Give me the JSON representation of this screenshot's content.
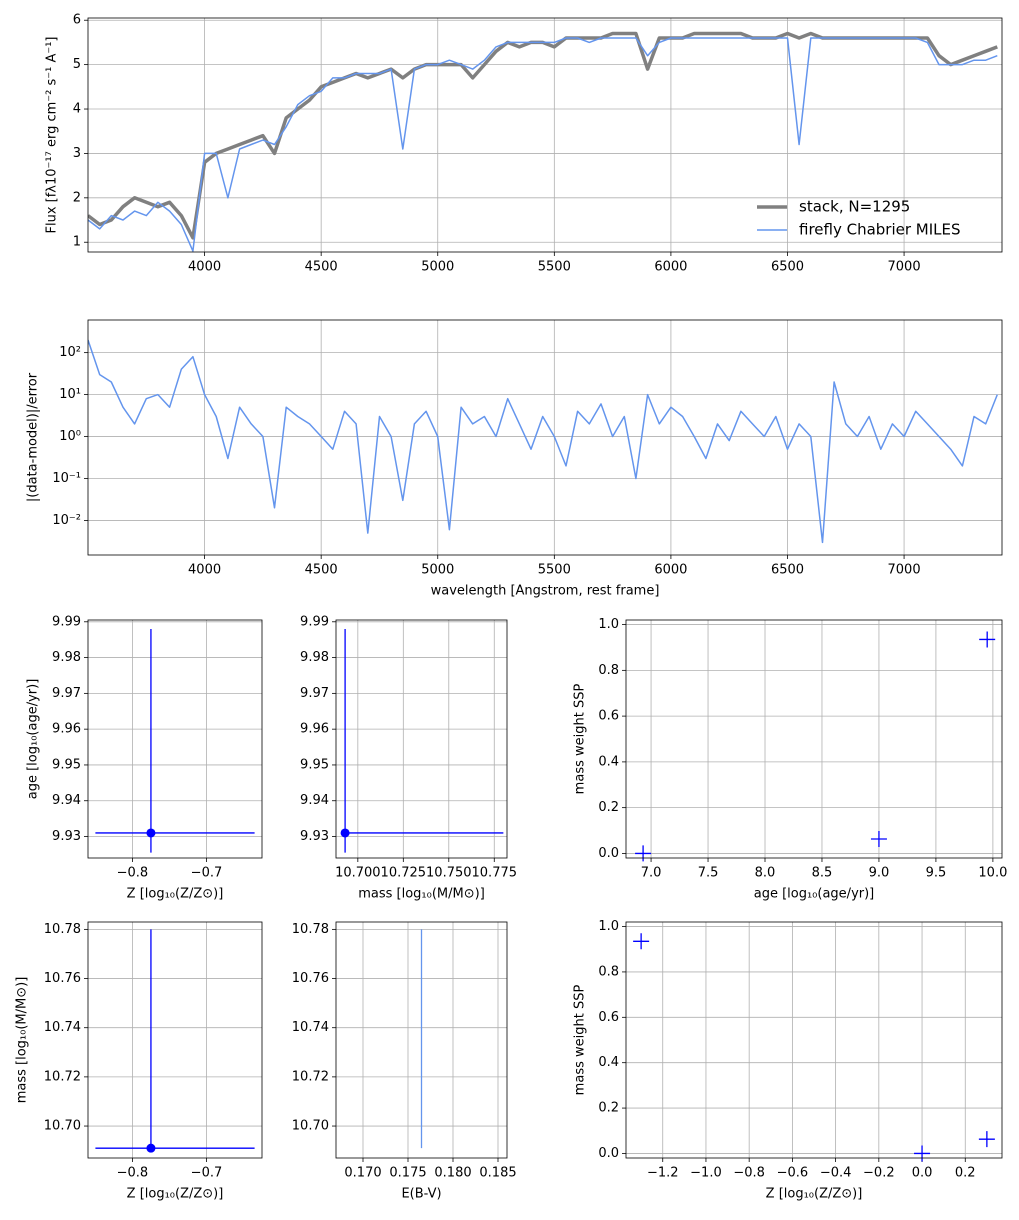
{
  "chart_data": [
    {
      "type": "line",
      "ylabel": "Flux [fλ10⁻¹⁷ erg cm⁻² s⁻¹ A⁻¹]",
      "x": [
        3500,
        3550,
        3600,
        3650,
        3700,
        3750,
        3800,
        3850,
        3900,
        3950,
        4000,
        4050,
        4100,
        4150,
        4200,
        4250,
        4300,
        4350,
        4400,
        4450,
        4500,
        4550,
        4600,
        4650,
        4700,
        4750,
        4800,
        4850,
        4900,
        4950,
        5000,
        5050,
        5100,
        5150,
        5200,
        5250,
        5300,
        5350,
        5400,
        5450,
        5500,
        5550,
        5600,
        5650,
        5700,
        5750,
        5800,
        5850,
        5900,
        5950,
        6000,
        6050,
        6100,
        6150,
        6200,
        6250,
        6300,
        6350,
        6400,
        6450,
        6500,
        6550,
        6600,
        6650,
        6700,
        6750,
        6800,
        6850,
        6900,
        6950,
        7000,
        7050,
        7100,
        7150,
        7200,
        7250,
        7300,
        7350,
        7400
      ],
      "series": [
        {
          "name": "stack, N=1295",
          "color": "#808080",
          "width": 3.5,
          "values": [
            1.6,
            1.4,
            1.5,
            1.8,
            2.0,
            1.9,
            1.8,
            1.9,
            1.6,
            1.1,
            2.8,
            3.0,
            3.1,
            3.2,
            3.3,
            3.4,
            3.0,
            3.8,
            4.0,
            4.2,
            4.5,
            4.6,
            4.7,
            4.8,
            4.7,
            4.8,
            4.9,
            4.7,
            4.9,
            5.0,
            5.0,
            5.0,
            5.0,
            4.7,
            5.0,
            5.3,
            5.5,
            5.4,
            5.5,
            5.5,
            5.4,
            5.6,
            5.6,
            5.6,
            5.6,
            5.7,
            5.7,
            5.7,
            4.9,
            5.6,
            5.6,
            5.6,
            5.7,
            5.7,
            5.7,
            5.7,
            5.7,
            5.6,
            5.6,
            5.6,
            5.7,
            5.6,
            5.7,
            5.6,
            5.6,
            5.6,
            5.6,
            5.6,
            5.6,
            5.6,
            5.6,
            5.6,
            5.6,
            5.2,
            5.0,
            5.1,
            5.2,
            5.3,
            5.4
          ]
        },
        {
          "name": "firefly Chabrier MILES",
          "color": "#6495ed",
          "width": 1.5,
          "values": [
            1.5,
            1.3,
            1.6,
            1.5,
            1.7,
            1.6,
            1.9,
            1.7,
            1.4,
            0.8,
            3.0,
            3.0,
            2.0,
            3.1,
            3.2,
            3.3,
            3.2,
            3.6,
            4.1,
            4.3,
            4.4,
            4.7,
            4.7,
            4.8,
            4.8,
            4.8,
            4.9,
            3.1,
            4.9,
            5.0,
            5.0,
            5.1,
            5.0,
            4.9,
            5.1,
            5.4,
            5.5,
            5.5,
            5.5,
            5.5,
            5.5,
            5.6,
            5.6,
            5.5,
            5.6,
            5.6,
            5.6,
            5.6,
            5.2,
            5.5,
            5.6,
            5.6,
            5.6,
            5.6,
            5.6,
            5.6,
            5.6,
            5.6,
            5.6,
            5.6,
            5.6,
            3.2,
            5.6,
            5.6,
            5.6,
            5.6,
            5.6,
            5.6,
            5.6,
            5.6,
            5.6,
            5.6,
            5.5,
            5.0,
            5.0,
            5.0,
            5.1,
            5.1,
            5.2
          ]
        }
      ],
      "xlim": [
        3500,
        7420
      ],
      "ylim": [
        0.78,
        6.05
      ],
      "xticks": [
        4000,
        4500,
        5000,
        5500,
        6000,
        6500,
        7000
      ],
      "yticks": [
        1,
        2,
        3,
        4,
        5,
        6
      ],
      "grid": true,
      "legend": "lower right"
    },
    {
      "type": "line",
      "ylabel": "|(data-model)|/error",
      "xlabel": "wavelength [Angstrom, rest frame]",
      "log_y": true,
      "x": [
        3500,
        3550,
        3600,
        3650,
        3700,
        3750,
        3800,
        3850,
        3900,
        3950,
        4000,
        4050,
        4100,
        4150,
        4200,
        4250,
        4300,
        4350,
        4400,
        4450,
        4500,
        4550,
        4600,
        4650,
        4700,
        4750,
        4800,
        4850,
        4900,
        4950,
        5000,
        5050,
        5100,
        5150,
        5200,
        5250,
        5300,
        5350,
        5400,
        5450,
        5500,
        5550,
        5600,
        5650,
        5700,
        5750,
        5800,
        5850,
        5900,
        5950,
        6000,
        6050,
        6100,
        6150,
        6200,
        6250,
        6300,
        6350,
        6400,
        6450,
        6500,
        6550,
        6600,
        6650,
        6700,
        6750,
        6800,
        6850,
        6900,
        6950,
        7000,
        7050,
        7100,
        7150,
        7200,
        7250,
        7300,
        7350,
        7400
      ],
      "series": [
        {
          "color": "#6495ed",
          "width": 1.5,
          "values": [
            200,
            30,
            20,
            5,
            2,
            8,
            10,
            5,
            40,
            80,
            10,
            3,
            0.3,
            5,
            2,
            1,
            0.02,
            5,
            3,
            2,
            1,
            0.5,
            4,
            2,
            0.005,
            3,
            1,
            0.03,
            2,
            4,
            1,
            0.006,
            5,
            2,
            3,
            1,
            8,
            2,
            0.5,
            3,
            1,
            0.2,
            4,
            2,
            6,
            1,
            3,
            0.1,
            10,
            2,
            5,
            3,
            1,
            0.3,
            2,
            0.8,
            4,
            2,
            1,
            3,
            0.5,
            2,
            1,
            0.003,
            20,
            2,
            1,
            3,
            0.5,
            2,
            1,
            4,
            2,
            1,
            0.5,
            0.2,
            3,
            2,
            10
          ]
        }
      ],
      "xlim": [
        3500,
        7420
      ],
      "ylim": [
        0.0015,
        600
      ],
      "xticks": [
        4000,
        4500,
        5000,
        5500,
        6000,
        6500,
        7000
      ],
      "yticks": [
        {
          "value": 0.01,
          "label": "10⁻²"
        },
        {
          "value": 0.1,
          "label": "10⁻¹"
        },
        {
          "value": 1,
          "label": "10⁰"
        },
        {
          "value": 10,
          "label": "10¹"
        },
        {
          "value": 100,
          "label": "10²"
        }
      ],
      "grid": true
    },
    {
      "type": "errorbar",
      "xlabel": "Z [log₁₀(Z/Z⊙)]",
      "ylabel": "age  [log₁₀(age/yr)]",
      "x": [
        -0.775
      ],
      "values": [
        9.931
      ],
      "x_lower": [
        -0.85
      ],
      "x_upper": [
        -0.635
      ],
      "y_lower": [
        9.9255
      ],
      "y_upper": [
        9.988
      ],
      "color": "#0000ff",
      "marker": "o",
      "xlim": [
        -0.86,
        -0.625
      ],
      "ylim": [
        9.924,
        9.9905
      ],
      "xticks": [
        {
          "value": -0.8,
          "label": "−0.8"
        },
        {
          "value": -0.7,
          "label": "−0.7"
        }
      ],
      "yticks": [
        9.93,
        9.94,
        9.95,
        9.96,
        9.97,
        9.98,
        9.99
      ],
      "grid": true
    },
    {
      "type": "errorbar",
      "xlabel": "mass [log₁₀(M/M⊙)]",
      "x": [
        10.693
      ],
      "values": [
        9.931
      ],
      "x_lower": [
        10.693
      ],
      "x_upper": [
        10.78
      ],
      "y_lower": [
        9.9255
      ],
      "y_upper": [
        9.988
      ],
      "color": "#0000ff",
      "marker": "o",
      "xlim": [
        10.688,
        10.782
      ],
      "ylim": [
        9.924,
        9.9905
      ],
      "xticks": [
        {
          "value": 10.7,
          "label": "10.700"
        },
        {
          "value": 10.725,
          "label": "10.725"
        },
        {
          "value": 10.75,
          "label": "10.750"
        },
        {
          "value": 10.775,
          "label": "10.775"
        }
      ],
      "yticks": [
        9.93,
        9.94,
        9.95,
        9.96,
        9.97,
        9.98,
        9.99
      ],
      "grid": true
    },
    {
      "type": "scatter",
      "xlabel": "age  [log₁₀(age/yr)]",
      "ylabel": "mass weight SSP",
      "x": [
        6.93,
        9.0,
        9.95
      ],
      "values": [
        0.0,
        0.063,
        0.935
      ],
      "color": "#0000ff",
      "marker": "+",
      "xlim": [
        6.78,
        10.08
      ],
      "ylim": [
        -0.02,
        1.02
      ],
      "xticks": [
        {
          "value": 7,
          "label": "7.0"
        },
        7.5,
        {
          "value": 8,
          "label": "8.0"
        },
        8.5,
        {
          "value": 9,
          "label": "9.0"
        },
        9.5,
        {
          "value": 10,
          "label": "10.0"
        }
      ],
      "yticks": [
        {
          "value": 0,
          "label": "0.0"
        },
        0.2,
        0.4,
        0.6,
        0.8,
        {
          "value": 1,
          "label": "1.0"
        }
      ],
      "grid": true
    },
    {
      "type": "errorbar",
      "xlabel": "Z [log₁₀(Z/Z⊙)]",
      "ylabel": "mass [log₁₀(M/M⊙)]",
      "x": [
        -0.775
      ],
      "values": [
        10.691
      ],
      "x_lower": [
        -0.85
      ],
      "x_upper": [
        -0.635
      ],
      "y_lower": [
        10.691
      ],
      "y_upper": [
        10.78
      ],
      "color": "#0000ff",
      "marker": "o",
      "xlim": [
        -0.86,
        -0.625
      ],
      "ylim": [
        10.687,
        10.783
      ],
      "xticks": [
        {
          "value": -0.8,
          "label": "−0.8"
        },
        {
          "value": -0.7,
          "label": "−0.7"
        }
      ],
      "yticks": [
        {
          "value": 10.7,
          "label": "10.70"
        },
        10.72,
        10.74,
        10.76,
        10.78
      ],
      "grid": true
    },
    {
      "type": "errorbar",
      "xlabel": "E(B-V)",
      "x": [
        0.1765
      ],
      "y_lower": [
        10.691
      ],
      "y_upper": [
        10.78
      ],
      "color": "#6495ed",
      "xlim": [
        0.167,
        0.186
      ],
      "ylim": [
        10.687,
        10.783
      ],
      "xticks": [
        {
          "value": 0.17,
          "label": "0.170"
        },
        0.175,
        {
          "value": 0.18,
          "label": "0.180"
        },
        0.185
      ],
      "yticks": [
        {
          "value": 10.7,
          "label": "10.70"
        },
        10.72,
        10.74,
        10.76,
        10.78
      ],
      "grid": true
    },
    {
      "type": "scatter",
      "xlabel": "Z [log₁₀(Z/Z⊙)]",
      "ylabel": "mass weight SSP",
      "x": [
        -1.3,
        0.0,
        0.3
      ],
      "values": [
        0.935,
        0.0,
        0.063
      ],
      "color": "#0000ff",
      "marker": "+",
      "xlim": [
        -1.37,
        0.37
      ],
      "ylim": [
        -0.02,
        1.02
      ],
      "xticks": [
        {
          "value": -1.2,
          "label": "−1.2"
        },
        {
          "value": -1,
          "label": "−1.0"
        },
        {
          "value": -0.8,
          "label": "−0.8"
        },
        {
          "value": -0.6,
          "label": "−0.6"
        },
        {
          "value": -0.4,
          "label": "−0.4"
        },
        {
          "value": -0.2,
          "label": "−0.2"
        },
        {
          "value": 0,
          "label": "0.0"
        },
        0.2
      ],
      "yticks": [
        {
          "value": 0,
          "label": "0.0"
        },
        0.2,
        0.4,
        0.6,
        0.8,
        {
          "value": 1,
          "label": "1.0"
        }
      ],
      "grid": true
    }
  ]
}
